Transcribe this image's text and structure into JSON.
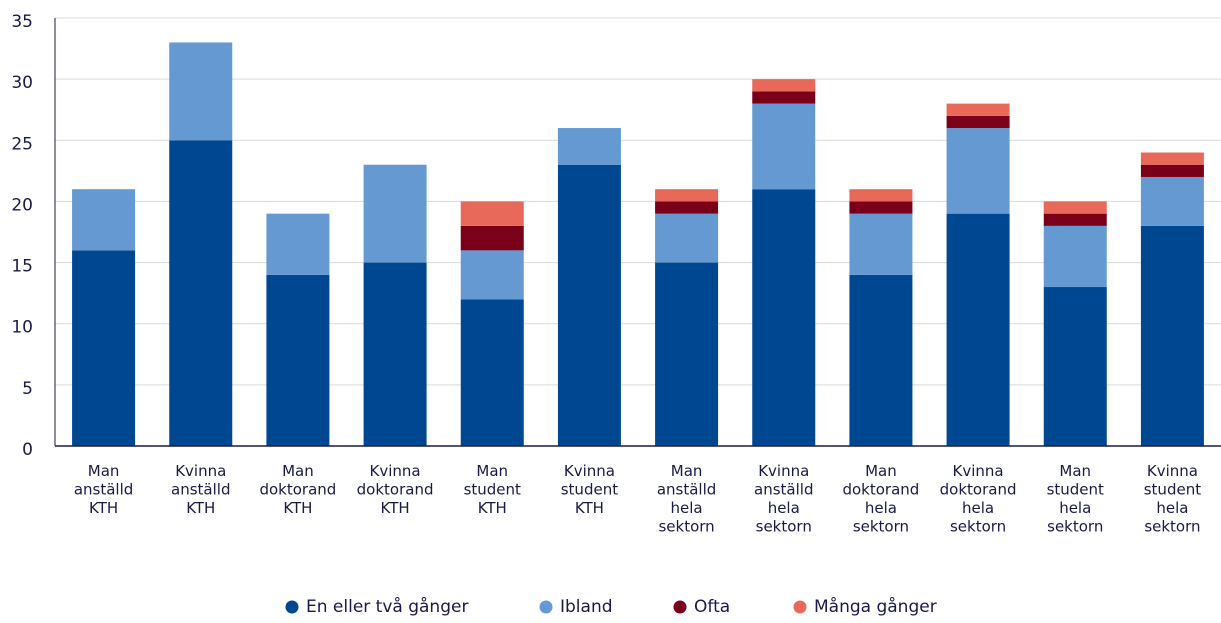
{
  "chart_data": {
    "type": "stacked_bar",
    "categories": [
      [
        "Man",
        "anställd",
        "KTH"
      ],
      [
        "Kvinna",
        "anställd",
        "KTH"
      ],
      [
        "Man",
        "doktorand",
        "KTH"
      ],
      [
        "Kvinna",
        "doktorand",
        "KTH"
      ],
      [
        "Man",
        "student",
        "KTH"
      ],
      [
        "Kvinna",
        "student",
        "KTH"
      ],
      [
        "Man",
        "anställd",
        "hela",
        "sektorn"
      ],
      [
        "Kvinna",
        "anställd",
        "hela",
        "sektorn"
      ],
      [
        "Man",
        "doktorand",
        "hela",
        "sektorn"
      ],
      [
        "Kvinna",
        "doktorand",
        "hela",
        "sektorn"
      ],
      [
        "Man",
        "student",
        "hela",
        "sektorn"
      ],
      [
        "Kvinna",
        "student",
        "hela",
        "sektorn"
      ]
    ],
    "series": [
      {
        "name": "En eller två gånger",
        "color": "#004791",
        "values": [
          16,
          25,
          14,
          15,
          12,
          23,
          15,
          21,
          14,
          19,
          13,
          18
        ]
      },
      {
        "name": "Ibland",
        "color": "#6499d1",
        "values": [
          5,
          8,
          5,
          8,
          4,
          3,
          4,
          7,
          5,
          7,
          5,
          4
        ]
      },
      {
        "name": "Ofta",
        "color": "#7a0019",
        "values": [
          0,
          0,
          0,
          0,
          2,
          0,
          1,
          1,
          1,
          1,
          1,
          1
        ]
      },
      {
        "name": "Många gånger",
        "color": "#e8685a",
        "values": [
          0,
          0,
          0,
          0,
          2,
          0,
          1,
          1,
          1,
          1,
          1,
          1
        ]
      }
    ],
    "ylim": [
      0,
      35
    ],
    "yticks": [
      0,
      5,
      10,
      15,
      20,
      25,
      30,
      35
    ],
    "grid": true,
    "legend": "bottom"
  }
}
